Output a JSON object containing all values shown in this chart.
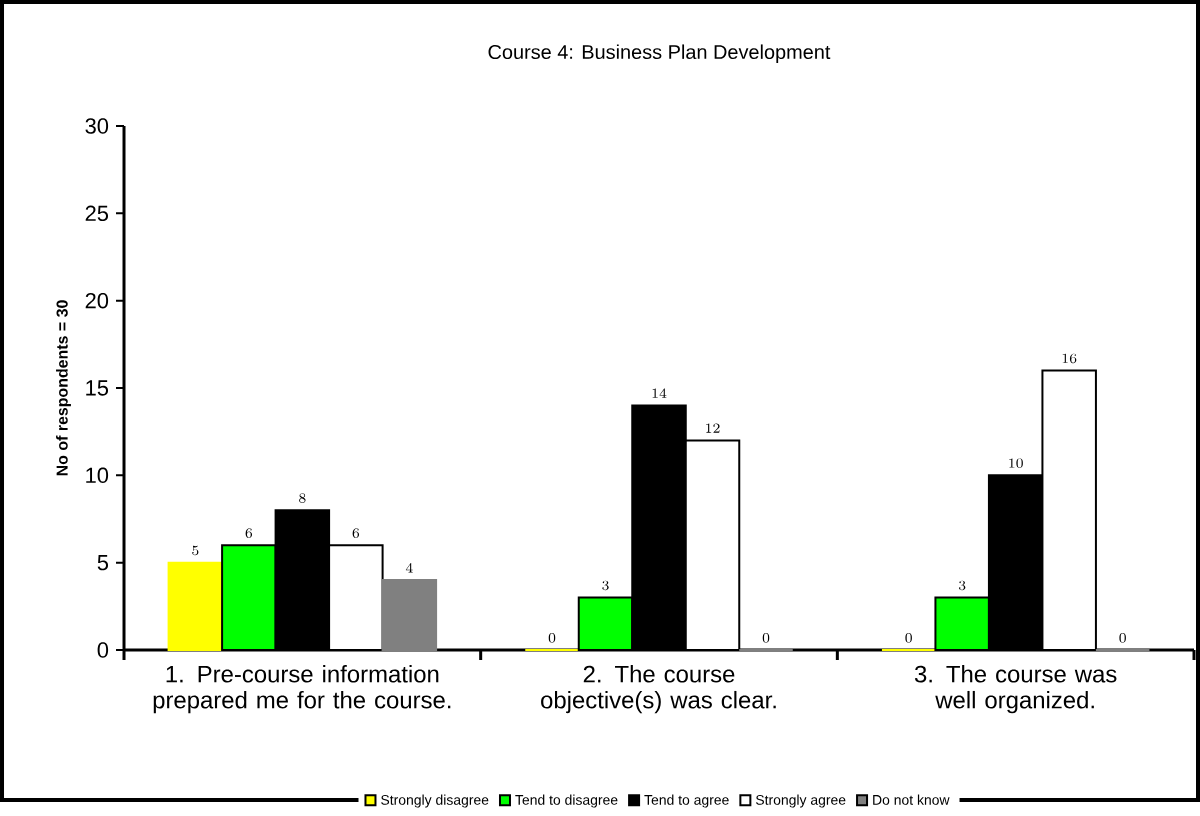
{
  "chart_data": {
    "type": "bar",
    "title": "Course 4: Business Plan Development",
    "ylabel": "No of respondents = 30",
    "categories": [
      "1. Pre-course information prepared me for the course.",
      "2. The course objective(s) was clear.",
      "3. The course was well organized."
    ],
    "series": [
      {
        "name": "Strongly disagree",
        "color": "#ffff00",
        "values": [
          5,
          0,
          0
        ]
      },
      {
        "name": "Tend to disagree",
        "color": "#00ff00",
        "values": [
          6,
          3,
          3
        ]
      },
      {
        "name": "Tend to agree",
        "color": "#000000",
        "values": [
          8,
          14,
          10
        ]
      },
      {
        "name": "Strongly agree",
        "color": "#ffffff",
        "values": [
          6,
          12,
          16
        ]
      },
      {
        "name": "Do not know",
        "color": "#808080",
        "values": [
          4,
          0,
          0
        ]
      }
    ],
    "ylim": [
      0,
      30
    ],
    "yticks": [
      0,
      5,
      10,
      15,
      20,
      25,
      30
    ],
    "data_labels": true,
    "legend": "bottom",
    "grid": false
  }
}
